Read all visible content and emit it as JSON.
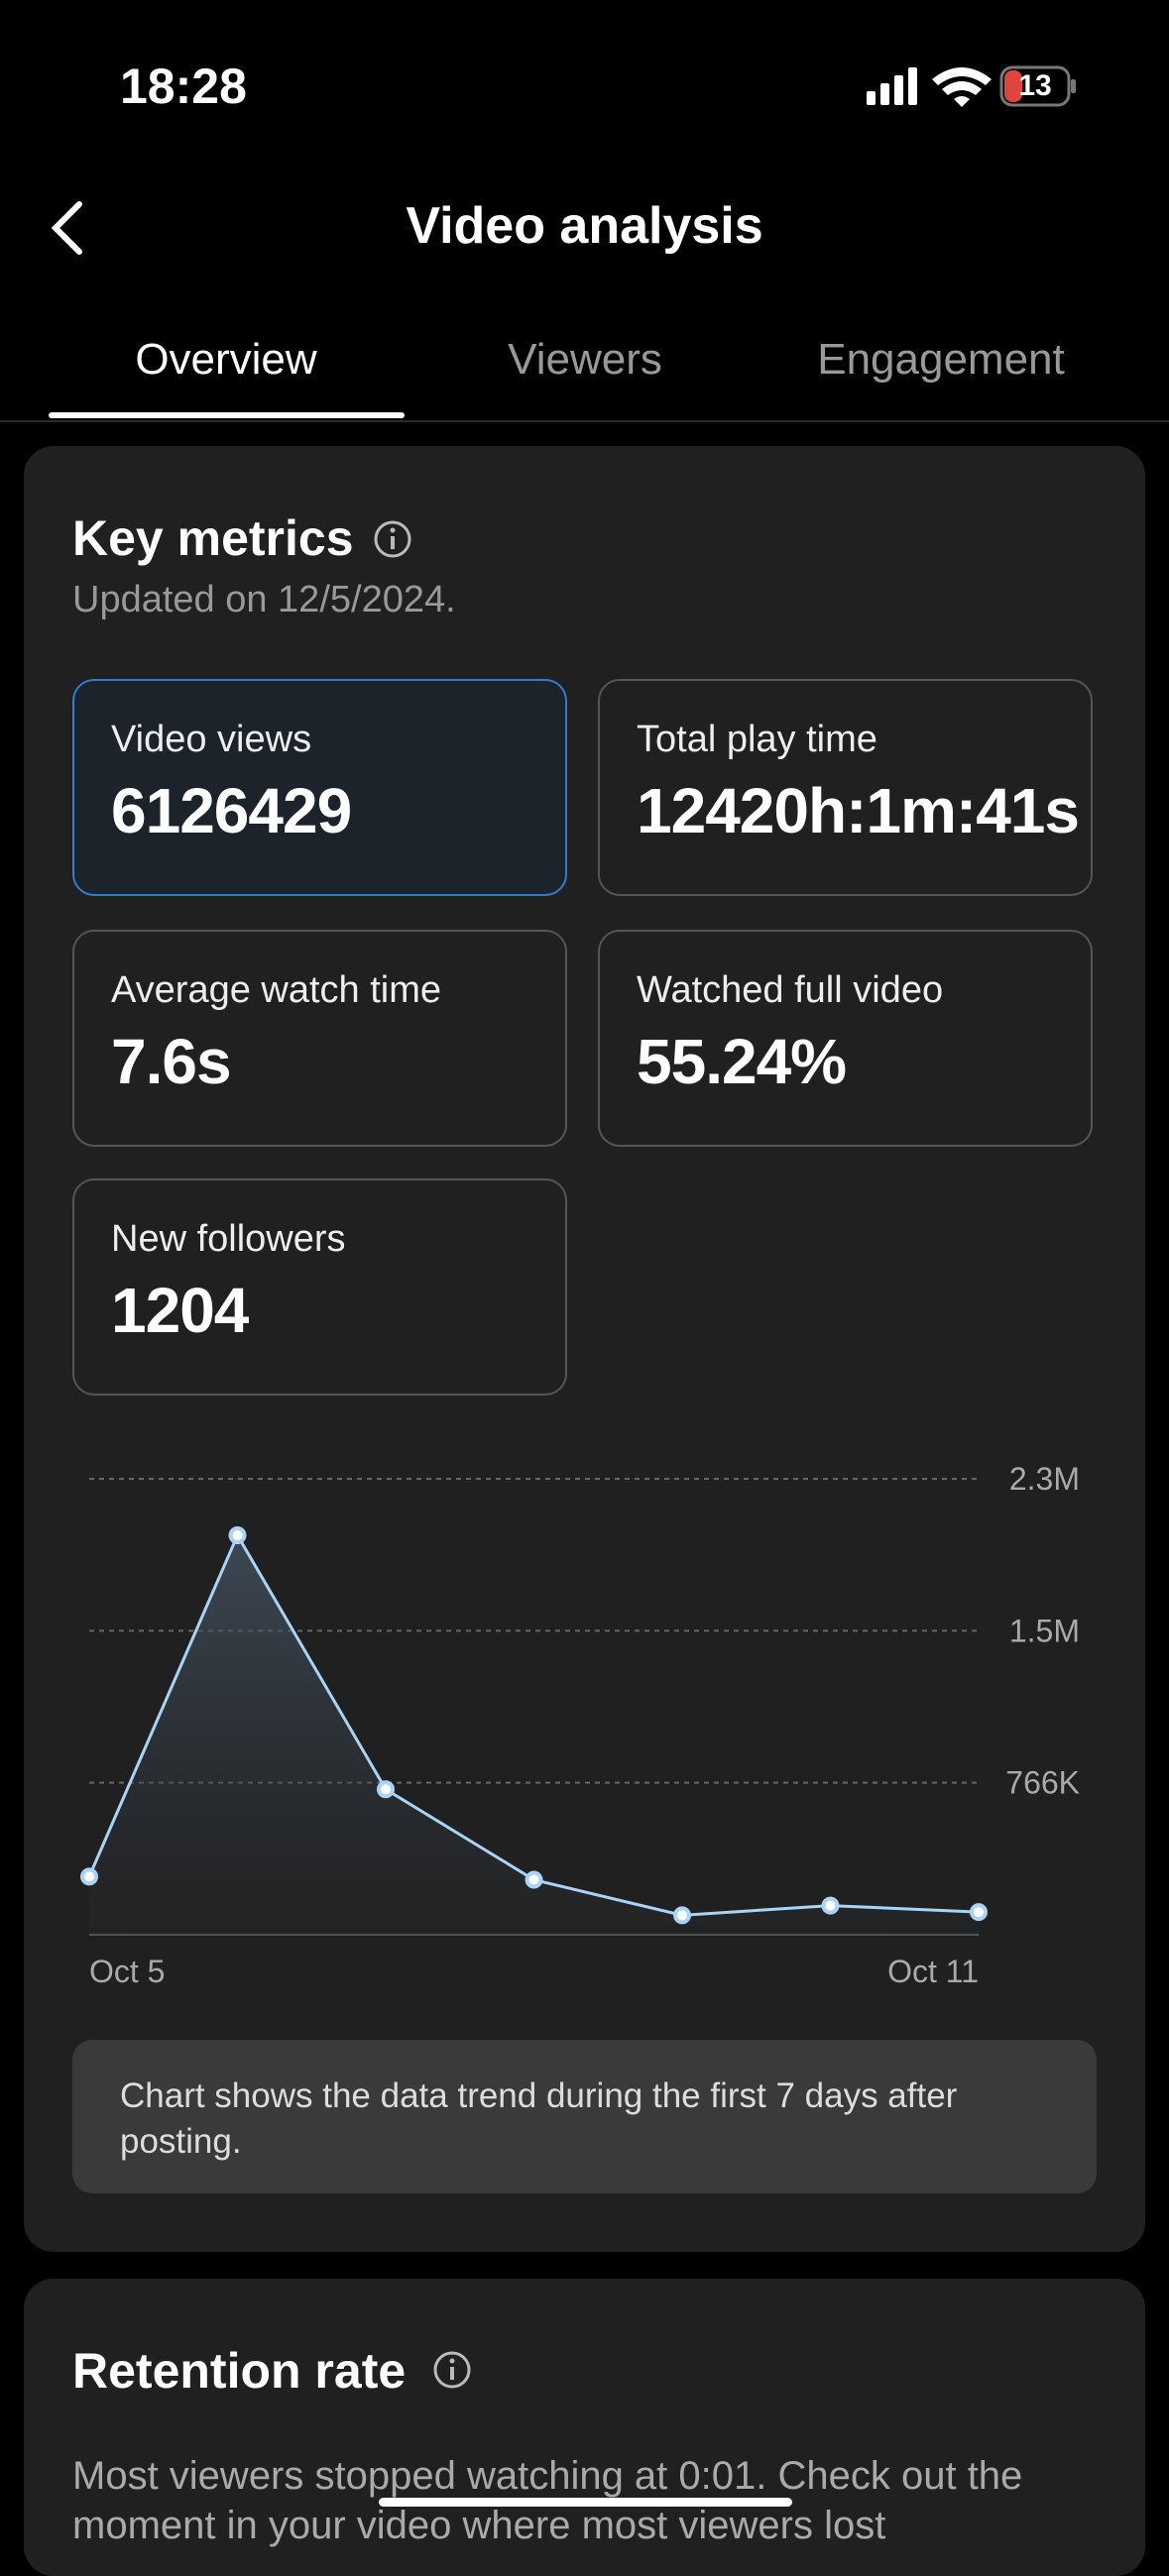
{
  "status": {
    "time": "18:28",
    "battery": "13"
  },
  "header": {
    "title": "Video analysis"
  },
  "tabs": [
    "Overview",
    "Viewers",
    "Engagement"
  ],
  "key_metrics": {
    "title": "Key metrics",
    "updated": "Updated on 12/5/2024.",
    "metrics": [
      {
        "label": "Video views",
        "value": "6126429"
      },
      {
        "label": "Total play time",
        "value": "12420h:1m:41s"
      },
      {
        "label": "Average watch time",
        "value": "7.6s"
      },
      {
        "label": "Watched full video",
        "value": "55.24%"
      },
      {
        "label": "New followers",
        "value": "1204"
      }
    ]
  },
  "chart_data": {
    "type": "line",
    "categories": [
      "Oct 5",
      null,
      null,
      null,
      null,
      null,
      "Oct 11"
    ],
    "values": [
      293000,
      2013000,
      733000,
      277000,
      98000,
      147000,
      114000
    ],
    "color": "#a9d4f5",
    "ylim": [
      0,
      2298000
    ],
    "yticks": [
      {
        "value": 766000,
        "label": "766K"
      },
      {
        "value": 1532000,
        "label": "1.5M"
      },
      {
        "value": 2298000,
        "label": "2.3M"
      }
    ],
    "grid": true,
    "note": "Chart shows the data trend during the first 7 days after posting."
  },
  "retention": {
    "title": "Retention rate",
    "text": "Most viewers stopped watching at 0:01. Check out the moment in your video where most viewers lost"
  }
}
